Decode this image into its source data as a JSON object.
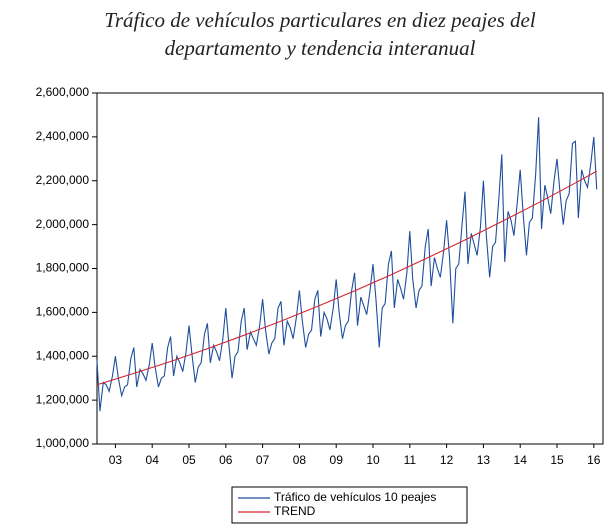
{
  "chart_data": {
    "type": "line",
    "title": [
      "Tráfico de vehículos particulares en diez peajes del",
      "departamento y tendencia interanual"
    ],
    "x": [
      3.0,
      3.08,
      3.17,
      3.25,
      3.33,
      3.42,
      3.5,
      3.58,
      3.67,
      3.75,
      3.83,
      3.92,
      4.0,
      4.08,
      4.17,
      4.25,
      4.33,
      4.42,
      4.5,
      4.58,
      4.67,
      4.75,
      4.83,
      4.92,
      5.0,
      5.08,
      5.17,
      5.25,
      5.33,
      5.42,
      5.5,
      5.58,
      5.67,
      5.75,
      5.83,
      5.92,
      6.0,
      6.08,
      6.17,
      6.25,
      6.33,
      6.42,
      6.5,
      6.58,
      6.67,
      6.75,
      6.83,
      6.92,
      7.0,
      7.08,
      7.17,
      7.25,
      7.33,
      7.42,
      7.5,
      7.58,
      7.67,
      7.75,
      7.83,
      7.92,
      8.0,
      8.08,
      8.17,
      8.25,
      8.33,
      8.42,
      8.5,
      8.58,
      8.67,
      8.75,
      8.83,
      8.92,
      9.0,
      9.08,
      9.17,
      9.25,
      9.33,
      9.42,
      9.5,
      9.58,
      9.67,
      9.75,
      9.83,
      9.92,
      10.0,
      10.08,
      10.17,
      10.25,
      10.33,
      10.42,
      10.5,
      10.58,
      10.67,
      10.75,
      10.83,
      10.92,
      11.0,
      11.08,
      11.17,
      11.25,
      11.33,
      11.42,
      11.5,
      11.58,
      11.67,
      11.75,
      11.83,
      11.92,
      12.0,
      12.08,
      12.17,
      12.25,
      12.33,
      12.42,
      12.5,
      12.58,
      12.67,
      12.75,
      12.83,
      12.92,
      13.0,
      13.08,
      13.17,
      13.25,
      13.33,
      13.42,
      13.5,
      13.58,
      13.67,
      13.75,
      13.83,
      13.92,
      14.0,
      14.08,
      14.17,
      14.25,
      14.33,
      14.42,
      14.5,
      14.58,
      14.67,
      14.75,
      14.83,
      14.92,
      15.0,
      15.08,
      15.17,
      15.25,
      15.33,
      15.42,
      15.5,
      15.58,
      15.67,
      15.75,
      15.83,
      15.92,
      16.0,
      16.08,
      16.17,
      16.25,
      16.33,
      16.42,
      16.5,
      16.58
    ],
    "series": [
      {
        "name": "Tráfico de vehículos 10 peajes",
        "color": "#1f4e9c",
        "values": [
          1380000,
          1150000,
          1280000,
          1270000,
          1240000,
          1310000,
          1400000,
          1300000,
          1220000,
          1260000,
          1270000,
          1390000,
          1440000,
          1260000,
          1340000,
          1320000,
          1290000,
          1360000,
          1460000,
          1350000,
          1260000,
          1300000,
          1310000,
          1440000,
          1490000,
          1310000,
          1400000,
          1370000,
          1330000,
          1420000,
          1540000,
          1410000,
          1280000,
          1350000,
          1370000,
          1500000,
          1550000,
          1370000,
          1450000,
          1420000,
          1380000,
          1480000,
          1620000,
          1460000,
          1300000,
          1400000,
          1420000,
          1560000,
          1620000,
          1430000,
          1510000,
          1480000,
          1450000,
          1540000,
          1660000,
          1520000,
          1410000,
          1460000,
          1480000,
          1620000,
          1650000,
          1450000,
          1560000,
          1530000,
          1480000,
          1580000,
          1700000,
          1560000,
          1440000,
          1500000,
          1520000,
          1660000,
          1700000,
          1490000,
          1600000,
          1570000,
          1520000,
          1620000,
          1750000,
          1600000,
          1480000,
          1540000,
          1560000,
          1700000,
          1780000,
          1540000,
          1670000,
          1630000,
          1590000,
          1700000,
          1820000,
          1660000,
          1440000,
          1620000,
          1640000,
          1820000,
          1880000,
          1620000,
          1750000,
          1710000,
          1660000,
          1780000,
          1970000,
          1750000,
          1620000,
          1700000,
          1720000,
          1900000,
          1980000,
          1720000,
          1850000,
          1800000,
          1760000,
          1880000,
          2020000,
          1850000,
          1550000,
          1800000,
          1820000,
          2000000,
          2150000,
          1820000,
          1960000,
          1910000,
          1860000,
          1990000,
          2200000,
          1950000,
          1760000,
          1900000,
          1920000,
          2120000,
          2320000,
          1830000,
          2060000,
          2020000,
          1950000,
          2100000,
          2250000,
          2050000,
          1860000,
          2010000,
          2030000,
          2230000,
          2490000,
          1980000,
          2180000,
          2120000,
          2050000,
          2200000,
          2300000,
          2150000,
          2000000,
          2110000,
          2140000,
          2370000,
          2380000,
          2030000,
          2250000,
          2200000,
          2170000,
          2280000,
          2400000,
          2160000
        ]
      },
      {
        "name": "TREND",
        "color": "#d2262f",
        "x": [
          3,
          4,
          5,
          6,
          7,
          8,
          9,
          10,
          11,
          12,
          13,
          14,
          15,
          16,
          16.58
        ],
        "values": [
          1270000,
          1322000,
          1376000,
          1434000,
          1496000,
          1560000,
          1628000,
          1698000,
          1772000,
          1850000,
          1930000,
          2014000,
          2100000,
          2190000,
          2244000
        ]
      }
    ],
    "xlim": [
      3,
      16.75
    ],
    "xticks": [
      {
        "value": 3.5,
        "label": "03"
      },
      {
        "value": 4.5,
        "label": "04"
      },
      {
        "value": 5.5,
        "label": "05"
      },
      {
        "value": 6.5,
        "label": "06"
      },
      {
        "value": 7.5,
        "label": "07"
      },
      {
        "value": 8.5,
        "label": "08"
      },
      {
        "value": 9.5,
        "label": "09"
      },
      {
        "value": 10.5,
        "label": "10"
      },
      {
        "value": 11.5,
        "label": "11"
      },
      {
        "value": 12.5,
        "label": "12"
      },
      {
        "value": 13.5,
        "label": "13"
      },
      {
        "value": 14.5,
        "label": "14"
      },
      {
        "value": 15.5,
        "label": "15"
      },
      {
        "value": 16.5,
        "label": "16"
      }
    ],
    "ylim": [
      1000000,
      2600000
    ],
    "yticks": [
      {
        "value": 1000000,
        "label": "1,000,000"
      },
      {
        "value": 1200000,
        "label": "1,200,000"
      },
      {
        "value": 1400000,
        "label": "1,400,000"
      },
      {
        "value": 1600000,
        "label": "1,600,000"
      },
      {
        "value": 1800000,
        "label": "1,800,000"
      },
      {
        "value": 2000000,
        "label": "2,000,000"
      },
      {
        "value": 2200000,
        "label": "2,200,000"
      },
      {
        "value": 2400000,
        "label": "2,400,000"
      },
      {
        "value": 2600000,
        "label": "2,600,000"
      }
    ],
    "grid": false,
    "legend": "bottom"
  }
}
